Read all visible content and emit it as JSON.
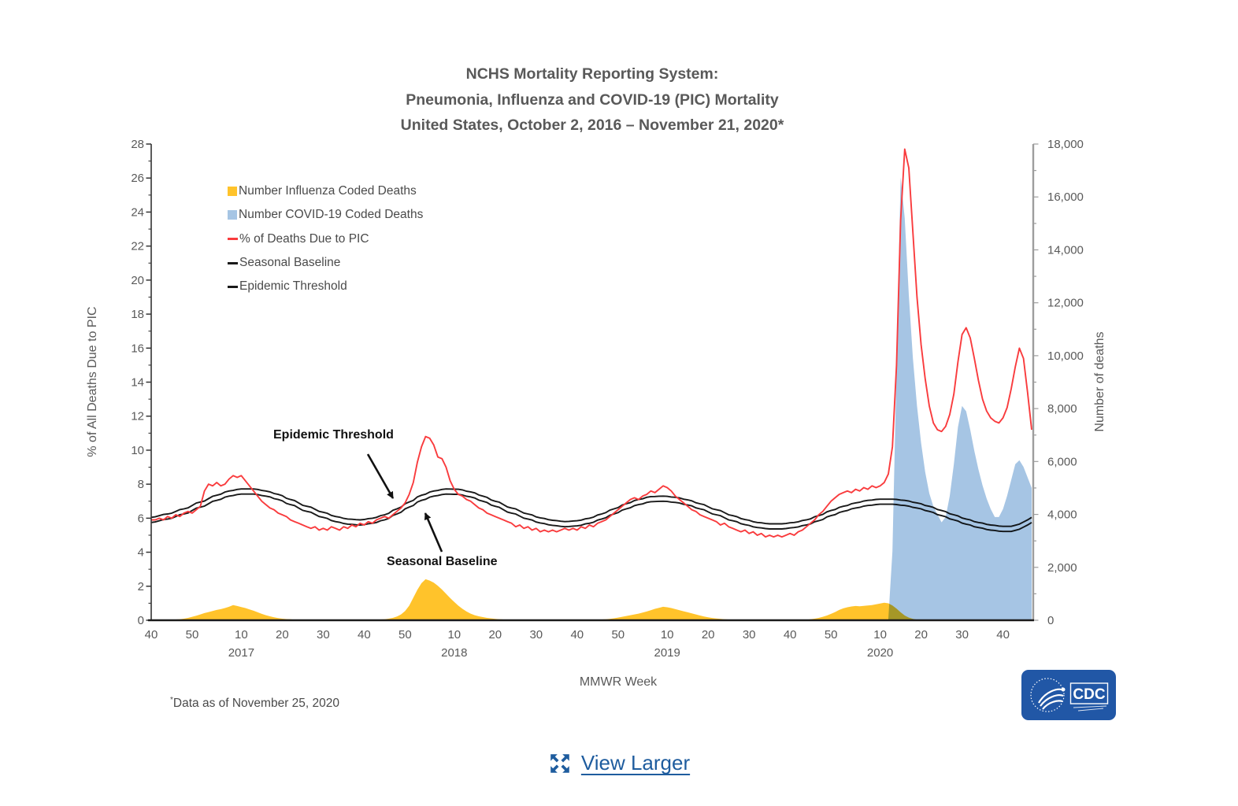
{
  "title": {
    "line1": "NCHS Mortality Reporting System:",
    "line2": "Pneumonia, Influenza and COVID-19 (PIC) Mortality",
    "line3": "United States, October 2, 2016 – November 21, 2020*",
    "color": "#595959"
  },
  "legend": {
    "items": [
      {
        "label": "Number Influenza Coded Deaths",
        "marker": "square",
        "color": "#FFC32B"
      },
      {
        "label": "Number COVID-19 Coded Deaths",
        "marker": "square",
        "color": "#A6C5E4"
      },
      {
        "label": "% of Deaths Due to PIC",
        "marker": "dash",
        "color": "#F93B3D"
      },
      {
        "label": "Seasonal Baseline",
        "marker": "dash",
        "color": "#1a1a1a"
      },
      {
        "label": "Epidemic Threshold",
        "marker": "dash",
        "color": "#1a1a1a"
      }
    ]
  },
  "annotations": {
    "epidemic_threshold": "Epidemic Threshold",
    "seasonal_baseline": "Seasonal Baseline"
  },
  "footnote": {
    "asterisk": "*",
    "text": "Data as of November 25, 2020"
  },
  "logo": {
    "cdc_text": "CDC",
    "background": "#2157A6"
  },
  "view_larger": {
    "label": "View Larger",
    "color": "#1e5c9e"
  },
  "chart_data": {
    "type": "combo-line-area",
    "title": "NCHS Mortality Reporting System: Pneumonia, Influenza and COVID-19 (PIC) Mortality — United States, October 2, 2016 – November 21, 2020*",
    "x_axis": {
      "label": "MMWR Week",
      "start_week": "2016-W40",
      "end_week": "2020-W47",
      "weeks_total": 216,
      "ticks": [
        {
          "label": "40",
          "index": 0
        },
        {
          "label": "50",
          "index": 10
        },
        {
          "label": "10",
          "index": 22
        },
        {
          "label": "20",
          "index": 32
        },
        {
          "label": "30",
          "index": 42
        },
        {
          "label": "40",
          "index": 52
        },
        {
          "label": "50",
          "index": 62
        },
        {
          "label": "10",
          "index": 74
        },
        {
          "label": "20",
          "index": 84
        },
        {
          "label": "30",
          "index": 94
        },
        {
          "label": "40",
          "index": 104
        },
        {
          "label": "50",
          "index": 114
        },
        {
          "label": "10",
          "index": 126
        },
        {
          "label": "20",
          "index": 136
        },
        {
          "label": "30",
          "index": 146
        },
        {
          "label": "40",
          "index": 156
        },
        {
          "label": "50",
          "index": 166
        },
        {
          "label": "10",
          "index": 178
        },
        {
          "label": "20",
          "index": 188
        },
        {
          "label": "30",
          "index": 198
        },
        {
          "label": "40",
          "index": 208
        }
      ],
      "year_labels": [
        {
          "label": "2017",
          "index": 22
        },
        {
          "label": "2018",
          "index": 74
        },
        {
          "label": "2019",
          "index": 126
        },
        {
          "label": "2020",
          "index": 178
        }
      ]
    },
    "y_left": {
      "label": "% of All Deaths Due to PIC",
      "min": 0,
      "max": 28,
      "major_step": 2,
      "minor_step": 1,
      "tick_labels": [
        "0",
        "2",
        "4",
        "6",
        "8",
        "10",
        "12",
        "14",
        "16",
        "18",
        "20",
        "22",
        "24",
        "26",
        "28"
      ]
    },
    "y_right": {
      "label": "Number of deaths",
      "min": 0,
      "max": 18000,
      "major_step": 2000,
      "minor_step": 1000,
      "tick_labels": [
        "0",
        "2,000",
        "4,000",
        "6,000",
        "8,000",
        "10,000",
        "12,000",
        "14,000",
        "16,000",
        "18,000"
      ]
    },
    "colors": {
      "left_axis": "#333333",
      "right_axis": "#9d9d9d",
      "bottom_axis": "#1a1a1a",
      "tick_text": "#595959",
      "annotation_arrow": "#111111"
    },
    "series": [
      {
        "name": "Number Influenza Coded Deaths",
        "type": "area",
        "axis": "right",
        "color": "#FFC32B",
        "values": [
          0,
          0,
          0,
          10,
          10,
          20,
          30,
          40,
          60,
          90,
          130,
          170,
          220,
          270,
          310,
          350,
          390,
          420,
          460,
          510,
          570,
          540,
          500,
          460,
          410,
          360,
          300,
          240,
          190,
          150,
          110,
          80,
          60,
          45,
          35,
          25,
          20,
          15,
          10,
          10,
          5,
          5,
          5,
          5,
          5,
          5,
          5,
          5,
          5,
          5,
          5,
          10,
          10,
          15,
          20,
          25,
          30,
          40,
          60,
          90,
          140,
          220,
          350,
          550,
          850,
          1150,
          1400,
          1550,
          1500,
          1420,
          1300,
          1160,
          1000,
          840,
          690,
          550,
          430,
          330,
          250,
          190,
          150,
          120,
          90,
          70,
          55,
          40,
          30,
          25,
          20,
          15,
          10,
          10,
          5,
          5,
          5,
          5,
          5,
          5,
          5,
          5,
          5,
          5,
          5,
          5,
          5,
          10,
          10,
          15,
          20,
          25,
          30,
          40,
          55,
          75,
          100,
          130,
          160,
          190,
          220,
          250,
          290,
          330,
          380,
          430,
          470,
          510,
          490,
          460,
          420,
          380,
          340,
          300,
          260,
          220,
          180,
          140,
          110,
          85,
          65,
          50,
          40,
          30,
          25,
          20,
          15,
          10,
          10,
          5,
          5,
          5,
          5,
          5,
          5,
          5,
          5,
          5,
          5,
          10,
          10,
          15,
          25,
          40,
          60,
          90,
          130,
          180,
          240,
          310,
          390,
          450,
          490,
          520,
          540,
          530,
          545,
          555,
          570,
          600,
          630,
          660,
          640,
          560,
          440,
          300,
          180,
          100,
          50,
          25,
          10,
          5,
          0,
          0,
          0,
          0,
          0,
          0,
          0,
          0,
          0,
          0,
          0,
          0,
          0,
          0,
          0,
          0,
          0,
          0,
          0,
          0,
          0,
          0,
          0,
          0,
          0,
          0
        ]
      },
      {
        "name": "Number COVID-19 Coded Deaths",
        "type": "area",
        "axis": "right",
        "color": "#A6C5E4",
        "blend": "multiply",
        "start_index": 180,
        "values_before_start": 0,
        "values": [
          60,
          2600,
          9500,
          16750,
          15200,
          12300,
          9900,
          8100,
          6700,
          5600,
          4800,
          4300,
          4000,
          3700,
          3900,
          4700,
          5900,
          7300,
          8100,
          7900,
          7200,
          6400,
          5700,
          5100,
          4600,
          4200,
          3900,
          3900,
          4200,
          4700,
          5300,
          5900,
          6050,
          5800,
          5400,
          5000
        ]
      },
      {
        "name": "% of Deaths Due to PIC",
        "type": "line",
        "axis": "left",
        "color": "#F93B3D",
        "values": [
          5.9,
          5.9,
          6.0,
          5.9,
          6.1,
          6.0,
          6.2,
          6.1,
          6.3,
          6.4,
          6.3,
          6.5,
          6.7,
          7.6,
          8.0,
          7.9,
          8.1,
          7.9,
          8.0,
          8.3,
          8.5,
          8.4,
          8.5,
          8.2,
          7.9,
          7.6,
          7.3,
          7.0,
          6.8,
          6.6,
          6.5,
          6.3,
          6.2,
          6.1,
          5.9,
          5.8,
          5.7,
          5.6,
          5.5,
          5.4,
          5.5,
          5.3,
          5.4,
          5.3,
          5.5,
          5.4,
          5.3,
          5.5,
          5.4,
          5.6,
          5.5,
          5.7,
          5.6,
          5.8,
          5.7,
          5.9,
          6.0,
          6.1,
          6.0,
          6.2,
          6.4,
          6.6,
          6.9,
          7.4,
          8.1,
          9.3,
          10.2,
          10.8,
          10.7,
          10.3,
          9.6,
          9.5,
          9.0,
          8.2,
          7.7,
          7.4,
          7.3,
          7.1,
          7.0,
          6.8,
          6.6,
          6.5,
          6.3,
          6.2,
          6.1,
          6.0,
          5.9,
          5.8,
          5.7,
          5.5,
          5.6,
          5.4,
          5.5,
          5.3,
          5.4,
          5.2,
          5.3,
          5.2,
          5.3,
          5.2,
          5.3,
          5.4,
          5.3,
          5.4,
          5.3,
          5.5,
          5.4,
          5.6,
          5.5,
          5.7,
          5.8,
          5.9,
          6.1,
          6.3,
          6.5,
          6.7,
          6.9,
          7.1,
          7.2,
          7.1,
          7.3,
          7.4,
          7.6,
          7.5,
          7.7,
          7.9,
          7.8,
          7.6,
          7.3,
          7.1,
          6.9,
          6.7,
          6.5,
          6.4,
          6.2,
          6.1,
          6.0,
          5.9,
          5.8,
          5.6,
          5.7,
          5.5,
          5.4,
          5.3,
          5.2,
          5.3,
          5.1,
          5.2,
          5.0,
          5.1,
          4.9,
          5.0,
          4.9,
          5.0,
          4.9,
          5.0,
          5.1,
          5.0,
          5.2,
          5.3,
          5.5,
          5.7,
          5.9,
          6.2,
          6.4,
          6.7,
          7.0,
          7.2,
          7.4,
          7.5,
          7.6,
          7.5,
          7.7,
          7.6,
          7.8,
          7.7,
          7.9,
          7.8,
          7.9,
          8.1,
          8.6,
          10.2,
          15.0,
          23.5,
          27.7,
          26.6,
          22.8,
          19.0,
          16.2,
          14.2,
          12.6,
          11.6,
          11.2,
          11.1,
          11.4,
          12.1,
          13.3,
          15.2,
          16.8,
          17.2,
          16.6,
          15.4,
          14.1,
          13.0,
          12.3,
          11.9,
          11.7,
          11.6,
          11.9,
          12.5,
          13.6,
          14.9,
          16.0,
          15.4,
          13.4,
          11.2
        ]
      },
      {
        "name": "Seasonal Baseline",
        "type": "line-knots",
        "axis": "left",
        "color": "#1a1a1a",
        "knots": [
          [
            0,
            5.75
          ],
          [
            4,
            5.95
          ],
          [
            8,
            6.25
          ],
          [
            12,
            6.65
          ],
          [
            16,
            7.05
          ],
          [
            19,
            7.3
          ],
          [
            22,
            7.42
          ],
          [
            25,
            7.42
          ],
          [
            28,
            7.3
          ],
          [
            31,
            7.1
          ],
          [
            34,
            6.8
          ],
          [
            38,
            6.4
          ],
          [
            42,
            6.05
          ],
          [
            45,
            5.8
          ],
          [
            48,
            5.65
          ],
          [
            51,
            5.6
          ],
          [
            54,
            5.7
          ],
          [
            57,
            5.9
          ],
          [
            60,
            6.25
          ],
          [
            63,
            6.65
          ],
          [
            66,
            7.05
          ],
          [
            69,
            7.3
          ],
          [
            72,
            7.42
          ],
          [
            75,
            7.4
          ],
          [
            78,
            7.25
          ],
          [
            81,
            7.0
          ],
          [
            84,
            6.7
          ],
          [
            88,
            6.3
          ],
          [
            92,
            5.95
          ],
          [
            95,
            5.72
          ],
          [
            98,
            5.58
          ],
          [
            101,
            5.5
          ],
          [
            104,
            5.55
          ],
          [
            107,
            5.7
          ],
          [
            110,
            5.95
          ],
          [
            113,
            6.25
          ],
          [
            116,
            6.55
          ],
          [
            119,
            6.8
          ],
          [
            122,
            6.97
          ],
          [
            125,
            7.0
          ],
          [
            128,
            6.93
          ],
          [
            131,
            6.78
          ],
          [
            134,
            6.55
          ],
          [
            138,
            6.2
          ],
          [
            142,
            5.85
          ],
          [
            145,
            5.62
          ],
          [
            148,
            5.45
          ],
          [
            151,
            5.37
          ],
          [
            154,
            5.37
          ],
          [
            157,
            5.45
          ],
          [
            160,
            5.6
          ],
          [
            163,
            5.85
          ],
          [
            166,
            6.15
          ],
          [
            169,
            6.4
          ],
          [
            172,
            6.6
          ],
          [
            175,
            6.75
          ],
          [
            178,
            6.82
          ],
          [
            181,
            6.82
          ],
          [
            184,
            6.75
          ],
          [
            187,
            6.6
          ],
          [
            190,
            6.4
          ],
          [
            193,
            6.15
          ],
          [
            196,
            5.9
          ],
          [
            199,
            5.65
          ],
          [
            202,
            5.45
          ],
          [
            205,
            5.3
          ],
          [
            208,
            5.22
          ],
          [
            210,
            5.22
          ],
          [
            212,
            5.35
          ],
          [
            214,
            5.6
          ],
          [
            215,
            5.75
          ]
        ]
      },
      {
        "name": "Epidemic Threshold",
        "type": "line-knots",
        "axis": "left",
        "color": "#1a1a1a",
        "knots_from": "Seasonal Baseline",
        "offset_from_baseline": 0.3
      }
    ]
  }
}
